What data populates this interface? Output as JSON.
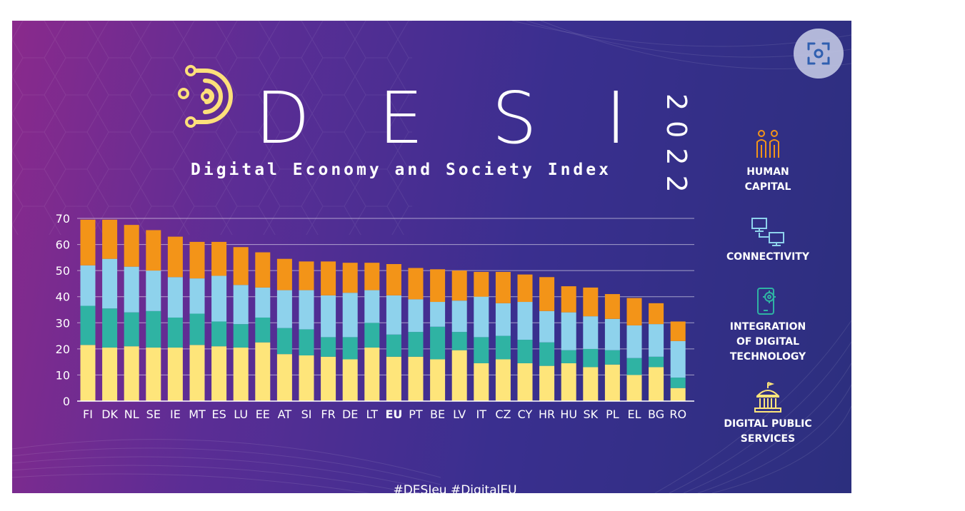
{
  "header": {
    "letters": [
      "D",
      "E",
      "S",
      "I"
    ],
    "subtitle": "Digital Economy and Society Index",
    "year": "2022"
  },
  "footer": {
    "hashtags": "#DESIeu  #DigitalEU"
  },
  "legend": [
    {
      "label": "HUMAN\nCAPITAL",
      "icon": "people-icon",
      "color": "#f39418"
    },
    {
      "label": "CONNECTIVITY",
      "icon": "network-computers-icon",
      "color": "#8ed2ec"
    },
    {
      "label": "INTEGRATION\nOF DIGITAL\nTECHNOLOGY",
      "icon": "phone-gear-icon",
      "color": "#2fb3a3"
    },
    {
      "label": "DIGITAL PUBLIC\nSERVICES",
      "icon": "public-building-icon",
      "color": "#fee57a"
    }
  ],
  "chart_data": {
    "type": "bar",
    "stacked": true,
    "categories": [
      "FI",
      "DK",
      "NL",
      "SE",
      "IE",
      "MT",
      "ES",
      "LU",
      "EE",
      "AT",
      "SI",
      "FR",
      "DE",
      "LT",
      "EU",
      "PT",
      "BE",
      "LV",
      "IT",
      "CZ",
      "CY",
      "HR",
      "HU",
      "SK",
      "PL",
      "EL",
      "BG",
      "RO"
    ],
    "highlight": "EU",
    "ylim": [
      0,
      70
    ],
    "yticks": [
      0,
      10,
      20,
      30,
      40,
      50,
      60,
      70
    ],
    "grid": true,
    "series": [
      {
        "name": "DIGITAL PUBLIC SERVICES",
        "color": "#fee57a",
        "values": [
          21.5,
          20.5,
          21,
          20.5,
          20.5,
          21.5,
          21,
          20.5,
          22.5,
          18,
          17.5,
          17,
          16,
          20.5,
          17,
          17,
          16,
          19.5,
          14.5,
          16,
          14.5,
          13.5,
          14.5,
          13,
          14,
          10,
          13,
          5
        ]
      },
      {
        "name": "INTEGRATION OF DIGITAL TECHNOLOGY",
        "color": "#2fb3a3",
        "values": [
          15,
          15,
          13,
          14,
          11.5,
          12,
          9.5,
          9,
          9.5,
          10,
          10,
          7.5,
          8.5,
          9.5,
          8.5,
          9.5,
          12.5,
          7,
          10,
          9,
          9,
          9,
          5,
          7,
          5.5,
          6.5,
          4,
          4
        ]
      },
      {
        "name": "CONNECTIVITY",
        "color": "#8ed2ec",
        "values": [
          15.5,
          19,
          17.5,
          15.5,
          15.5,
          13.5,
          17.5,
          15,
          11.5,
          14.5,
          15,
          16,
          17,
          12.5,
          15,
          12.5,
          9.5,
          12,
          15.5,
          12.5,
          14.5,
          12,
          14.5,
          12.5,
          12,
          12.5,
          12.5,
          14
        ]
      },
      {
        "name": "HUMAN CAPITAL",
        "color": "#f39418",
        "values": [
          17.5,
          15,
          16,
          15.5,
          15.5,
          14,
          13,
          14.5,
          13.5,
          12,
          11,
          13,
          11.5,
          10.5,
          12,
          12,
          12.5,
          11.5,
          9.5,
          12,
          10.5,
          13,
          10,
          11,
          9.5,
          10.5,
          8,
          7.5
        ]
      }
    ]
  }
}
